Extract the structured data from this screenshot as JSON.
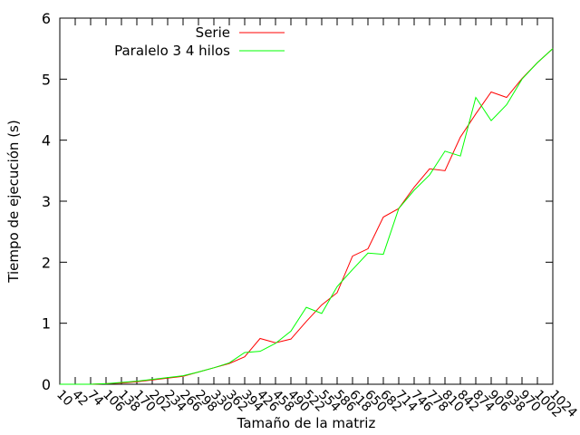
{
  "chart_data": {
    "type": "line",
    "title": "",
    "xlabel": "Tamaño de la matriz",
    "ylabel": "Tiempo de ejecución (s)",
    "ylim": [
      0,
      6
    ],
    "yticks": [
      0,
      1,
      2,
      3,
      4,
      5,
      6
    ],
    "grid": false,
    "legend_position": "top-left",
    "x": [
      10,
      42,
      74,
      106,
      138,
      170,
      202,
      234,
      266,
      298,
      330,
      362,
      394,
      426,
      458,
      490,
      522,
      554,
      586,
      618,
      650,
      682,
      714,
      746,
      778,
      810,
      842,
      874,
      906,
      938,
      970,
      1002,
      1024
    ],
    "x_tick_labels": [
      "10",
      "42",
      "74",
      "106",
      "138",
      "170",
      "202",
      "234",
      "266",
      "298",
      "330",
      "362",
      "394",
      "426",
      "458",
      "490",
      "522",
      "554",
      "586",
      "618",
      "650",
      "682",
      "714",
      "746",
      "778",
      "810",
      "842",
      "874",
      "906",
      "938",
      "970",
      "1002",
      "1024"
    ],
    "series": [
      {
        "name": "Serie",
        "color": "#ff0000",
        "values": [
          0.0,
          0.0,
          0.0,
          0.01,
          0.02,
          0.04,
          0.07,
          0.1,
          0.13,
          0.2,
          0.27,
          0.34,
          0.45,
          0.75,
          0.68,
          0.74,
          1.03,
          1.3,
          1.5,
          2.1,
          2.22,
          2.74,
          2.88,
          3.23,
          3.53,
          3.5,
          4.05,
          4.43,
          4.79,
          4.7,
          5.01,
          5.27,
          5.5
        ]
      },
      {
        "name": "Paralelo 3 4 hilos",
        "color": "#00ff00",
        "values": [
          0.0,
          0.0,
          0.0,
          0.01,
          0.03,
          0.05,
          0.08,
          0.11,
          0.14,
          0.2,
          0.27,
          0.35,
          0.52,
          0.54,
          0.67,
          0.87,
          1.26,
          1.16,
          1.6,
          1.88,
          2.15,
          2.13,
          2.88,
          3.18,
          3.43,
          3.82,
          3.74,
          4.7,
          4.32,
          4.58,
          5.0,
          5.27,
          5.5
        ]
      }
    ]
  }
}
